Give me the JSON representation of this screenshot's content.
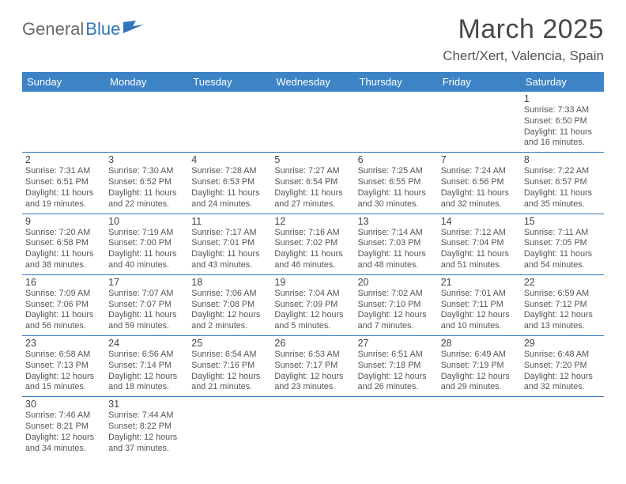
{
  "branding": {
    "logo_part1": "General",
    "logo_part2": "Blue"
  },
  "header": {
    "month_title": "March 2025",
    "location": "Chert/Xert, Valencia, Spain"
  },
  "colors": {
    "header_bg": "#3c84c6",
    "header_fg": "#ffffff",
    "rule": "#2f76bb",
    "text": "#555555",
    "logo_grey": "#6a6a6a",
    "logo_blue": "#2f76bb"
  },
  "weekdays": [
    "Sunday",
    "Monday",
    "Tuesday",
    "Wednesday",
    "Thursday",
    "Friday",
    "Saturday"
  ],
  "weeks": [
    [
      null,
      null,
      null,
      null,
      null,
      null,
      {
        "n": "1",
        "sr": "Sunrise: 7:33 AM",
        "ss": "Sunset: 6:50 PM",
        "d1": "Daylight: 11 hours",
        "d2": "and 16 minutes."
      }
    ],
    [
      {
        "n": "2",
        "sr": "Sunrise: 7:31 AM",
        "ss": "Sunset: 6:51 PM",
        "d1": "Daylight: 11 hours",
        "d2": "and 19 minutes."
      },
      {
        "n": "3",
        "sr": "Sunrise: 7:30 AM",
        "ss": "Sunset: 6:52 PM",
        "d1": "Daylight: 11 hours",
        "d2": "and 22 minutes."
      },
      {
        "n": "4",
        "sr": "Sunrise: 7:28 AM",
        "ss": "Sunset: 6:53 PM",
        "d1": "Daylight: 11 hours",
        "d2": "and 24 minutes."
      },
      {
        "n": "5",
        "sr": "Sunrise: 7:27 AM",
        "ss": "Sunset: 6:54 PM",
        "d1": "Daylight: 11 hours",
        "d2": "and 27 minutes."
      },
      {
        "n": "6",
        "sr": "Sunrise: 7:25 AM",
        "ss": "Sunset: 6:55 PM",
        "d1": "Daylight: 11 hours",
        "d2": "and 30 minutes."
      },
      {
        "n": "7",
        "sr": "Sunrise: 7:24 AM",
        "ss": "Sunset: 6:56 PM",
        "d1": "Daylight: 11 hours",
        "d2": "and 32 minutes."
      },
      {
        "n": "8",
        "sr": "Sunrise: 7:22 AM",
        "ss": "Sunset: 6:57 PM",
        "d1": "Daylight: 11 hours",
        "d2": "and 35 minutes."
      }
    ],
    [
      {
        "n": "9",
        "sr": "Sunrise: 7:20 AM",
        "ss": "Sunset: 6:58 PM",
        "d1": "Daylight: 11 hours",
        "d2": "and 38 minutes."
      },
      {
        "n": "10",
        "sr": "Sunrise: 7:19 AM",
        "ss": "Sunset: 7:00 PM",
        "d1": "Daylight: 11 hours",
        "d2": "and 40 minutes."
      },
      {
        "n": "11",
        "sr": "Sunrise: 7:17 AM",
        "ss": "Sunset: 7:01 PM",
        "d1": "Daylight: 11 hours",
        "d2": "and 43 minutes."
      },
      {
        "n": "12",
        "sr": "Sunrise: 7:16 AM",
        "ss": "Sunset: 7:02 PM",
        "d1": "Daylight: 11 hours",
        "d2": "and 46 minutes."
      },
      {
        "n": "13",
        "sr": "Sunrise: 7:14 AM",
        "ss": "Sunset: 7:03 PM",
        "d1": "Daylight: 11 hours",
        "d2": "and 48 minutes."
      },
      {
        "n": "14",
        "sr": "Sunrise: 7:12 AM",
        "ss": "Sunset: 7:04 PM",
        "d1": "Daylight: 11 hours",
        "d2": "and 51 minutes."
      },
      {
        "n": "15",
        "sr": "Sunrise: 7:11 AM",
        "ss": "Sunset: 7:05 PM",
        "d1": "Daylight: 11 hours",
        "d2": "and 54 minutes."
      }
    ],
    [
      {
        "n": "16",
        "sr": "Sunrise: 7:09 AM",
        "ss": "Sunset: 7:06 PM",
        "d1": "Daylight: 11 hours",
        "d2": "and 56 minutes."
      },
      {
        "n": "17",
        "sr": "Sunrise: 7:07 AM",
        "ss": "Sunset: 7:07 PM",
        "d1": "Daylight: 11 hours",
        "d2": "and 59 minutes."
      },
      {
        "n": "18",
        "sr": "Sunrise: 7:06 AM",
        "ss": "Sunset: 7:08 PM",
        "d1": "Daylight: 12 hours",
        "d2": "and 2 minutes."
      },
      {
        "n": "19",
        "sr": "Sunrise: 7:04 AM",
        "ss": "Sunset: 7:09 PM",
        "d1": "Daylight: 12 hours",
        "d2": "and 5 minutes."
      },
      {
        "n": "20",
        "sr": "Sunrise: 7:02 AM",
        "ss": "Sunset: 7:10 PM",
        "d1": "Daylight: 12 hours",
        "d2": "and 7 minutes."
      },
      {
        "n": "21",
        "sr": "Sunrise: 7:01 AM",
        "ss": "Sunset: 7:11 PM",
        "d1": "Daylight: 12 hours",
        "d2": "and 10 minutes."
      },
      {
        "n": "22",
        "sr": "Sunrise: 6:59 AM",
        "ss": "Sunset: 7:12 PM",
        "d1": "Daylight: 12 hours",
        "d2": "and 13 minutes."
      }
    ],
    [
      {
        "n": "23",
        "sr": "Sunrise: 6:58 AM",
        "ss": "Sunset: 7:13 PM",
        "d1": "Daylight: 12 hours",
        "d2": "and 15 minutes."
      },
      {
        "n": "24",
        "sr": "Sunrise: 6:56 AM",
        "ss": "Sunset: 7:14 PM",
        "d1": "Daylight: 12 hours",
        "d2": "and 18 minutes."
      },
      {
        "n": "25",
        "sr": "Sunrise: 6:54 AM",
        "ss": "Sunset: 7:16 PM",
        "d1": "Daylight: 12 hours",
        "d2": "and 21 minutes."
      },
      {
        "n": "26",
        "sr": "Sunrise: 6:53 AM",
        "ss": "Sunset: 7:17 PM",
        "d1": "Daylight: 12 hours",
        "d2": "and 23 minutes."
      },
      {
        "n": "27",
        "sr": "Sunrise: 6:51 AM",
        "ss": "Sunset: 7:18 PM",
        "d1": "Daylight: 12 hours",
        "d2": "and 26 minutes."
      },
      {
        "n": "28",
        "sr": "Sunrise: 6:49 AM",
        "ss": "Sunset: 7:19 PM",
        "d1": "Daylight: 12 hours",
        "d2": "and 29 minutes."
      },
      {
        "n": "29",
        "sr": "Sunrise: 6:48 AM",
        "ss": "Sunset: 7:20 PM",
        "d1": "Daylight: 12 hours",
        "d2": "and 32 minutes."
      }
    ],
    [
      {
        "n": "30",
        "sr": "Sunrise: 7:46 AM",
        "ss": "Sunset: 8:21 PM",
        "d1": "Daylight: 12 hours",
        "d2": "and 34 minutes."
      },
      {
        "n": "31",
        "sr": "Sunrise: 7:44 AM",
        "ss": "Sunset: 8:22 PM",
        "d1": "Daylight: 12 hours",
        "d2": "and 37 minutes."
      },
      null,
      null,
      null,
      null,
      null
    ]
  ]
}
